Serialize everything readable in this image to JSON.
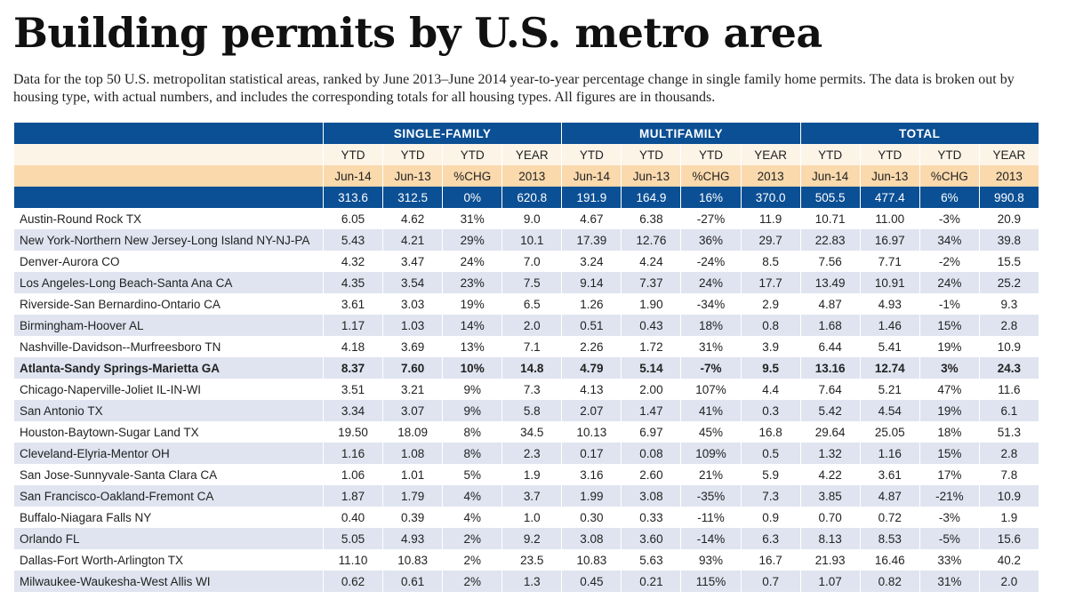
{
  "title": "Building permits by U.S. metro area",
  "description": "Data for the top 50 U.S. metropolitan statistical areas, ranked by June 2013–June 2014 year-to-year percentage change in single family home permits. The data is broken out by housing type, with actual numbers, and includes the corresponding totals for all housing types. All figures are in thousands.",
  "groups": [
    "SINGLE-FAMILY",
    "MULTIFAMILY",
    "TOTAL"
  ],
  "subheader_top": [
    "YTD",
    "YTD",
    "YTD",
    "YEAR"
  ],
  "subheader_bottom": [
    "Jun-14",
    "Jun-13",
    "%CHG",
    "2013"
  ],
  "totals": [
    "313.6",
    "312.5",
    "0%",
    "620.8",
    "191.9",
    "164.9",
    "16%",
    "370.0",
    "505.5",
    "477.4",
    "6%",
    "990.8"
  ],
  "rows": [
    {
      "name": "Austin-Round Rock TX",
      "values": [
        "6.05",
        "4.62",
        "31%",
        "9.0",
        "4.67",
        "6.38",
        "-27%",
        "11.9",
        "10.71",
        "11.00",
        "-3%",
        "20.9"
      ]
    },
    {
      "name": "New York-Northern New Jersey-Long Island NY-NJ-PA",
      "values": [
        "5.43",
        "4.21",
        "29%",
        "10.1",
        "17.39",
        "12.76",
        "36%",
        "29.7",
        "22.83",
        "16.97",
        "34%",
        "39.8"
      ]
    },
    {
      "name": "Denver-Aurora CO",
      "values": [
        "4.32",
        "3.47",
        "24%",
        "7.0",
        "3.24",
        "4.24",
        "-24%",
        "8.5",
        "7.56",
        "7.71",
        "-2%",
        "15.5"
      ]
    },
    {
      "name": "Los Angeles-Long Beach-Santa Ana CA",
      "values": [
        "4.35",
        "3.54",
        "23%",
        "7.5",
        "9.14",
        "7.37",
        "24%",
        "17.7",
        "13.49",
        "10.91",
        "24%",
        "25.2"
      ]
    },
    {
      "name": "Riverside-San Bernardino-Ontario CA",
      "values": [
        "3.61",
        "3.03",
        "19%",
        "6.5",
        "1.26",
        "1.90",
        "-34%",
        "2.9",
        "4.87",
        "4.93",
        "-1%",
        "9.3"
      ]
    },
    {
      "name": "Birmingham-Hoover AL",
      "values": [
        "1.17",
        "1.03",
        "14%",
        "2.0",
        "0.51",
        "0.43",
        "18%",
        "0.8",
        "1.68",
        "1.46",
        "15%",
        "2.8"
      ]
    },
    {
      "name": "Nashville-Davidson--Murfreesboro TN",
      "values": [
        "4.18",
        "3.69",
        "13%",
        "7.1",
        "2.26",
        "1.72",
        "31%",
        "3.9",
        "6.44",
        "5.41",
        "19%",
        "10.9"
      ]
    },
    {
      "name": "Atlanta-Sandy Springs-Marietta GA",
      "bold": true,
      "values": [
        "8.37",
        "7.60",
        "10%",
        "14.8",
        "4.79",
        "5.14",
        "-7%",
        "9.5",
        "13.16",
        "12.74",
        "3%",
        "24.3"
      ]
    },
    {
      "name": "Chicago-Naperville-Joliet IL-IN-WI",
      "values": [
        "3.51",
        "3.21",
        "9%",
        "7.3",
        "4.13",
        "2.00",
        "107%",
        "4.4",
        "7.64",
        "5.21",
        "47%",
        "11.6"
      ]
    },
    {
      "name": "San Antonio TX",
      "values": [
        "3.34",
        "3.07",
        "9%",
        "5.8",
        "2.07",
        "1.47",
        "41%",
        "0.3",
        "5.42",
        "4.54",
        "19%",
        "6.1"
      ]
    },
    {
      "name": "Houston-Baytown-Sugar Land TX",
      "values": [
        "19.50",
        "18.09",
        "8%",
        "34.5",
        "10.13",
        "6.97",
        "45%",
        "16.8",
        "29.64",
        "25.05",
        "18%",
        "51.3"
      ]
    },
    {
      "name": "Cleveland-Elyria-Mentor OH",
      "values": [
        "1.16",
        "1.08",
        "8%",
        "2.3",
        "0.17",
        "0.08",
        "109%",
        "0.5",
        "1.32",
        "1.16",
        "15%",
        "2.8"
      ]
    },
    {
      "name": "San Jose-Sunnyvale-Santa Clara CA",
      "values": [
        "1.06",
        "1.01",
        "5%",
        "1.9",
        "3.16",
        "2.60",
        "21%",
        "5.9",
        "4.22",
        "3.61",
        "17%",
        "7.8"
      ]
    },
    {
      "name": "San Francisco-Oakland-Fremont CA",
      "values": [
        "1.87",
        "1.79",
        "4%",
        "3.7",
        "1.99",
        "3.08",
        "-35%",
        "7.3",
        "3.85",
        "4.87",
        "-21%",
        "10.9"
      ]
    },
    {
      "name": "Buffalo-Niagara Falls NY",
      "values": [
        "0.40",
        "0.39",
        "4%",
        "1.0",
        "0.30",
        "0.33",
        "-11%",
        "0.9",
        "0.70",
        "0.72",
        "-3%",
        "1.9"
      ]
    },
    {
      "name": "Orlando FL",
      "values": [
        "5.05",
        "4.93",
        "2%",
        "9.2",
        "3.08",
        "3.60",
        "-14%",
        "6.3",
        "8.13",
        "8.53",
        "-5%",
        "15.6"
      ]
    },
    {
      "name": "Dallas-Fort Worth-Arlington TX",
      "values": [
        "11.10",
        "10.83",
        "2%",
        "23.5",
        "10.83",
        "5.63",
        "93%",
        "16.7",
        "21.93",
        "16.46",
        "33%",
        "40.2"
      ]
    },
    {
      "name": "Milwaukee-Waukesha-West Allis WI",
      "values": [
        "0.62",
        "0.61",
        "2%",
        "1.3",
        "0.45",
        "0.21",
        "115%",
        "0.7",
        "1.07",
        "0.82",
        "31%",
        "2.0"
      ]
    }
  ]
}
